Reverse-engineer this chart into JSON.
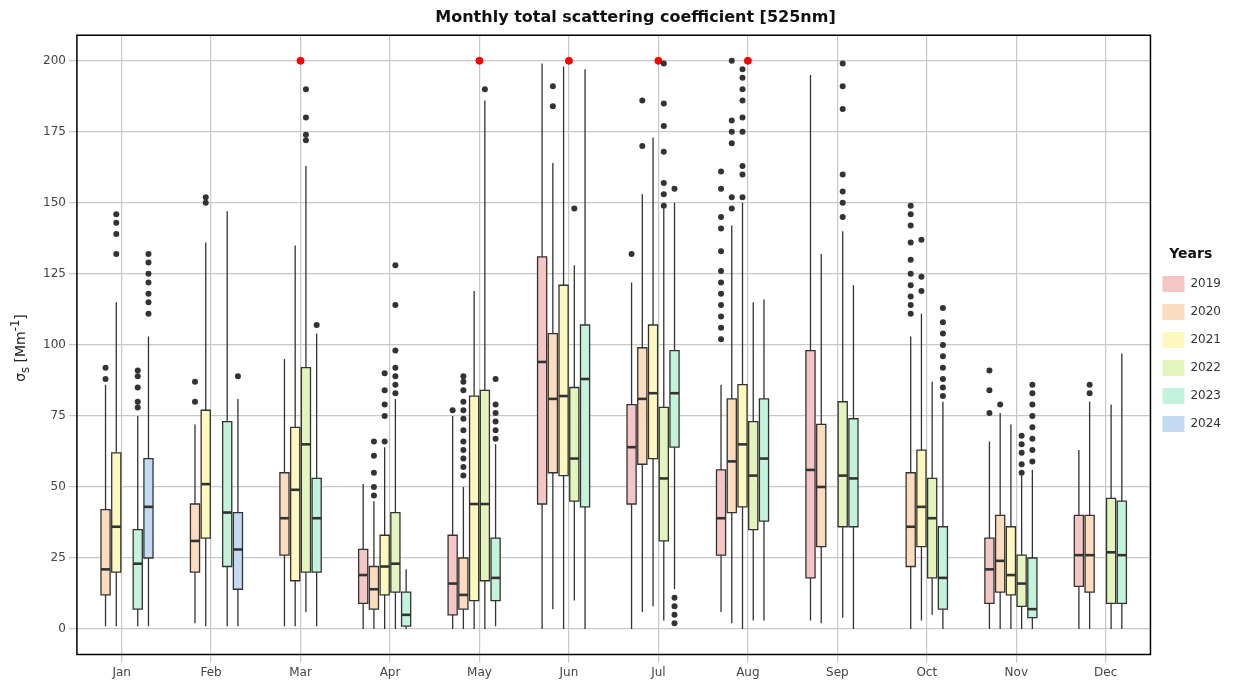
{
  "chart_data": {
    "type": "box",
    "title": "Monthly total scattering coefficient [525nm]",
    "ylabel": "σ$_{s}$ [Mm$^{-1}$]",
    "legend_title": "Years",
    "legend": "right",
    "grid": true,
    "categories": [
      "Jan",
      "Feb",
      "Mar",
      "Apr",
      "May",
      "Jun",
      "Jul",
      "Aug",
      "Sep",
      "Oct",
      "Nov",
      "Dec"
    ],
    "ylim": [
      -9,
      209
    ],
    "yticks": [
      0,
      25,
      50,
      75,
      100,
      125,
      150,
      175,
      200
    ],
    "series": [
      {
        "name": "2019",
        "color": "#f4c6c6",
        "boxes": [
          null,
          null,
          null,
          {
            "low": 0,
            "q1": 9,
            "median": 19,
            "q3": 28,
            "high": 51
          },
          {
            "low": 0,
            "q1": 5,
            "median": 16,
            "q3": 33,
            "high": 75,
            "outliers": [
              77
            ]
          },
          {
            "low": 0,
            "q1": 44,
            "median": 94,
            "q3": 131,
            "high": 199
          },
          {
            "low": 0,
            "q1": 44,
            "median": 64,
            "q3": 79,
            "high": 122,
            "outliers": [
              132
            ]
          },
          {
            "low": 6,
            "q1": 26,
            "median": 39,
            "q3": 56,
            "high": 86,
            "outliers": [
              102,
              106,
              110,
              114,
              118,
              122,
              126,
              133,
              141,
              145,
              155,
              161
            ]
          },
          {
            "low": 3,
            "q1": 18,
            "median": 56,
            "q3": 98,
            "high": 195
          },
          null,
          {
            "low": 0,
            "q1": 9,
            "median": 21,
            "q3": 32,
            "high": 66,
            "outliers": [
              76,
              84,
              91
            ]
          },
          {
            "low": 0,
            "q1": 15,
            "median": 26,
            "q3": 40,
            "high": 63
          }
        ]
      },
      {
        "name": "2020",
        "color": "#fcdcbf",
        "boxes": [
          {
            "low": 1,
            "q1": 12,
            "median": 21,
            "q3": 42,
            "high": 86,
            "outliers": [
              88,
              92
            ]
          },
          {
            "low": 2,
            "q1": 20,
            "median": 31,
            "q3": 44,
            "high": 72,
            "outliers": [
              80,
              87
            ]
          },
          {
            "low": 1,
            "q1": 26,
            "median": 39,
            "q3": 55,
            "high": 95
          },
          {
            "low": 0,
            "q1": 7,
            "median": 14,
            "q3": 22,
            "high": 45,
            "outliers": [
              47,
              50,
              55,
              61,
              66
            ]
          },
          {
            "low": 0,
            "q1": 7,
            "median": 12,
            "q3": 25,
            "high": 50,
            "outliers": [
              54,
              57,
              60,
              63,
              66,
              70,
              74,
              77,
              80,
              84,
              87,
              89
            ]
          },
          {
            "low": 7,
            "q1": 55,
            "median": 81,
            "q3": 104,
            "high": 164,
            "outliers": [
              184,
              191
            ]
          },
          {
            "low": 6,
            "q1": 58,
            "median": 81,
            "q3": 99,
            "high": 153,
            "outliers": [
              170,
              186
            ]
          },
          {
            "low": 2,
            "q1": 41,
            "median": 59,
            "q3": 81,
            "high": 142,
            "outliers": [
              148,
              152,
              171,
              175,
              179,
              200
            ]
          },
          {
            "low": 2,
            "q1": 29,
            "median": 50,
            "q3": 72,
            "high": 132
          },
          {
            "low": 0,
            "q1": 22,
            "median": 36,
            "q3": 55,
            "high": 103,
            "outliers": [
              111,
              114,
              117,
              121,
              125,
              130,
              136,
              142,
              146,
              149
            ]
          },
          {
            "low": 0,
            "q1": 13,
            "median": 24,
            "q3": 40,
            "high": 76,
            "outliers": [
              79
            ]
          },
          {
            "low": 0,
            "q1": 13,
            "median": 26,
            "q3": 40,
            "high": 80,
            "outliers": [
              83,
              86
            ]
          }
        ]
      },
      {
        "name": "2021",
        "color": "#fdf8bd",
        "boxes": [
          {
            "low": 1,
            "q1": 20,
            "median": 36,
            "q3": 62,
            "high": 115,
            "outliers": [
              132,
              139,
              143,
              146
            ]
          },
          {
            "low": 1,
            "q1": 32,
            "median": 51,
            "q3": 77,
            "high": 136,
            "outliers": [
              150,
              152
            ]
          },
          {
            "low": 1,
            "q1": 17,
            "median": 49,
            "q3": 71,
            "high": 135
          },
          {
            "low": 0,
            "q1": 12,
            "median": 22,
            "q3": 33,
            "high": 64,
            "outliers": [
              66,
              75,
              79,
              84,
              90
            ]
          },
          {
            "low": 0,
            "q1": 10,
            "median": 44,
            "q3": 82,
            "high": 119
          },
          {
            "low": 0,
            "q1": 54,
            "median": 82,
            "q3": 121,
            "high": 198
          },
          {
            "low": 8,
            "q1": 60,
            "median": 83,
            "q3": 107,
            "high": 173
          },
          {
            "low": 0,
            "q1": 43,
            "median": 65,
            "q3": 86,
            "high": 150,
            "outliers": [
              152,
              160,
              163,
              175,
              180,
              186,
              190,
              194,
              197
            ]
          },
          null,
          {
            "low": 3,
            "q1": 29,
            "median": 43,
            "q3": 63,
            "high": 111,
            "outliers": [
              119,
              124,
              137
            ]
          },
          {
            "low": 0,
            "q1": 12,
            "median": 19,
            "q3": 36,
            "high": 72
          },
          null
        ]
      },
      {
        "name": "2022",
        "color": "#e3f5bd",
        "boxes": [
          null,
          null,
          {
            "low": 6,
            "q1": 20,
            "median": 65,
            "q3": 92,
            "high": 163,
            "outliers": [
              172,
              174,
              180,
              190
            ]
          },
          {
            "low": 0,
            "q1": 13,
            "median": 23,
            "q3": 41,
            "high": 81,
            "outliers": [
              83,
              86,
              89,
              92,
              98,
              114,
              128
            ]
          },
          {
            "low": 0,
            "q1": 17,
            "median": 44,
            "q3": 84,
            "high": 186,
            "outliers": [
              190
            ]
          },
          {
            "low": 10,
            "q1": 45,
            "median": 60,
            "q3": 85,
            "high": 128,
            "outliers": [
              148
            ]
          },
          {
            "low": 3,
            "q1": 31,
            "median": 53,
            "q3": 78,
            "high": 148,
            "outliers": [
              149,
              153,
              157,
              168,
              177,
              185,
              199
            ]
          },
          {
            "low": 3,
            "q1": 35,
            "median": 54,
            "q3": 73,
            "high": 115
          },
          {
            "low": 4,
            "q1": 36,
            "median": 54,
            "q3": 80,
            "high": 140,
            "outliers": [
              145,
              150,
              154,
              160,
              183,
              191,
              199
            ]
          },
          {
            "low": 5,
            "q1": 18,
            "median": 39,
            "q3": 53,
            "high": 87
          },
          {
            "low": 0,
            "q1": 8,
            "median": 16,
            "q3": 26,
            "high": 54,
            "outliers": [
              55,
              58,
              62,
              65,
              68
            ]
          },
          {
            "low": 0,
            "q1": 9,
            "median": 27,
            "q3": 46,
            "high": 79
          }
        ]
      },
      {
        "name": "2023",
        "color": "#c4f3dc",
        "boxes": [
          {
            "low": 1,
            "q1": 7,
            "median": 23,
            "q3": 35,
            "high": 75,
            "outliers": [
              78,
              80,
              85,
              89,
              91
            ]
          },
          {
            "low": 1,
            "q1": 22,
            "median": 41,
            "q3": 73,
            "high": 147
          },
          {
            "low": 1,
            "q1": 20,
            "median": 39,
            "q3": 53,
            "high": 104,
            "outliers": [
              107
            ]
          },
          {
            "low": 0,
            "q1": 1,
            "median": 5,
            "q3": 13,
            "high": 21
          },
          {
            "low": 1,
            "q1": 10,
            "median": 18,
            "q3": 32,
            "high": 65,
            "outliers": [
              67,
              70,
              73,
              76,
              79,
              88
            ]
          },
          {
            "low": 0,
            "q1": 43,
            "median": 88,
            "q3": 107,
            "high": 197
          },
          {
            "low": 14,
            "q1": 64,
            "median": 83,
            "q3": 98,
            "high": 150,
            "outliers": [
              2,
              5,
              8,
              11,
              155
            ]
          },
          {
            "low": 3,
            "q1": 38,
            "median": 60,
            "q3": 81,
            "high": 116
          },
          {
            "low": 0,
            "q1": 36,
            "median": 53,
            "q3": 74,
            "high": 121
          },
          {
            "low": 0,
            "q1": 7,
            "median": 18,
            "q3": 36,
            "high": 80,
            "outliers": [
              82,
              85,
              88,
              92,
              96,
              100,
              104,
              108,
              113
            ]
          },
          {
            "low": 0,
            "q1": 4,
            "median": 7,
            "q3": 25,
            "high": 56,
            "outliers": [
              59,
              63,
              67,
              71,
              75,
              79,
              83,
              86
            ]
          },
          {
            "low": 0,
            "q1": 9,
            "median": 26,
            "q3": 45,
            "high": 97
          }
        ]
      },
      {
        "name": "2024",
        "color": "#c4daf3",
        "boxes": [
          {
            "low": 1,
            "q1": 25,
            "median": 43,
            "q3": 60,
            "high": 103,
            "outliers": [
              111,
              115,
              118,
              122,
              125,
              129,
              132
            ]
          },
          {
            "low": 1,
            "q1": 14,
            "median": 28,
            "q3": 41,
            "high": 81,
            "outliers": [
              89
            ]
          },
          null,
          null,
          null,
          null,
          null,
          null,
          null,
          null,
          null,
          null
        ]
      },
      {
        "type": "scatter",
        "color": "#ff0000",
        "x": [
          "Mar",
          "May",
          "Jun",
          "Jul",
          "Aug"
        ],
        "values": [
          200,
          200,
          200,
          200,
          200
        ]
      }
    ]
  }
}
